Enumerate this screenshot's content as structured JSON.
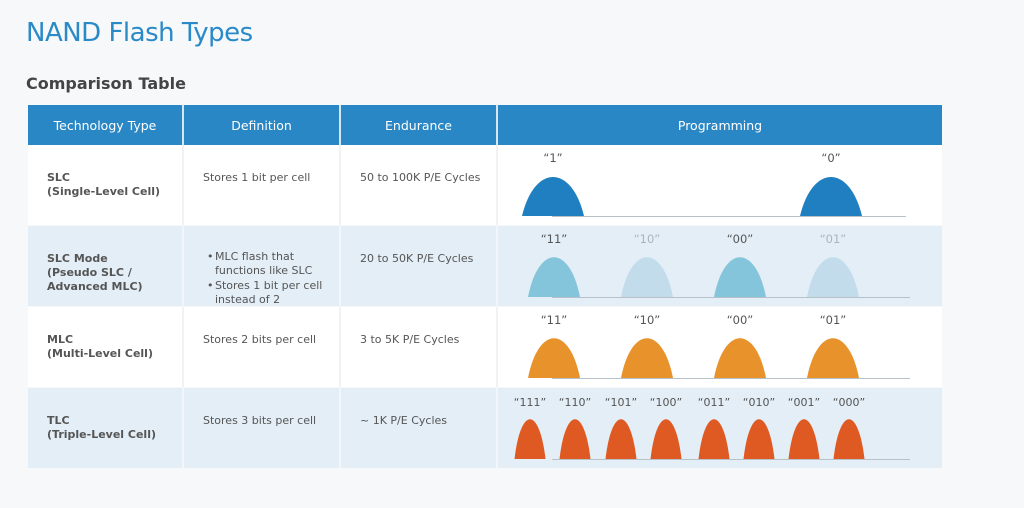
{
  "title": "NAND Flash Types",
  "subtitle": "Comparison Table",
  "colors": {
    "header": "#2a87c5",
    "slc": "#1f7fc0",
    "pslc_active": "#84c5dc",
    "pslc_inactive": "#c3dceb",
    "mlc": "#e8922c",
    "tlc": "#df5a22",
    "title": "#2a8ac8"
  },
  "headers": [
    "Technology Type",
    "Definition",
    "Endurance",
    "Programming"
  ],
  "rows": [
    {
      "tech": [
        "SLC",
        "(Single-Level Cell)"
      ],
      "definition": [
        "Stores 1 bit per cell"
      ],
      "bulleted": false,
      "endurance": "50 to 100K P/E Cycles",
      "states": [
        {
          "label": "“1”",
          "active": true
        },
        {
          "label": "“0”",
          "active": true
        }
      ],
      "color": "#1f7fc0"
    },
    {
      "tech": [
        "SLC Mode",
        "(Pseudo SLC /",
        "Advanced MLC)"
      ],
      "definition": [
        "MLC flash that functions like SLC",
        "Stores 1 bit per cell instead of 2"
      ],
      "bulleted": true,
      "endurance": "20 to 50K P/E Cycles",
      "states": [
        {
          "label": "“11”",
          "active": true
        },
        {
          "label": "“10”",
          "active": false
        },
        {
          "label": "“00”",
          "active": true
        },
        {
          "label": "“01”",
          "active": false
        }
      ],
      "color": "#84c5dc",
      "inactive_color": "#c3dceb"
    },
    {
      "tech": [
        "MLC",
        "(Multi-Level Cell)"
      ],
      "definition": [
        "Stores 2 bits per cell"
      ],
      "bulleted": false,
      "endurance": "3 to 5K P/E Cycles",
      "states": [
        {
          "label": "“11”",
          "active": true
        },
        {
          "label": "“10”",
          "active": true
        },
        {
          "label": "“00”",
          "active": true
        },
        {
          "label": "“01”",
          "active": true
        }
      ],
      "color": "#e8922c"
    },
    {
      "tech": [
        "TLC",
        "(Triple-Level Cell)"
      ],
      "definition": [
        "Stores 3 bits per cell"
      ],
      "bulleted": false,
      "endurance": "~ 1K P/E Cycles",
      "states": [
        {
          "label": "“111”",
          "active": true
        },
        {
          "label": "“110”",
          "active": true
        },
        {
          "label": "“101”",
          "active": true
        },
        {
          "label": "“100”",
          "active": true
        },
        {
          "label": "“011”",
          "active": true
        },
        {
          "label": "“010”",
          "active": true
        },
        {
          "label": "“001”",
          "active": true
        },
        {
          "label": "“000”",
          "active": true
        }
      ],
      "color": "#df5a22"
    }
  ]
}
